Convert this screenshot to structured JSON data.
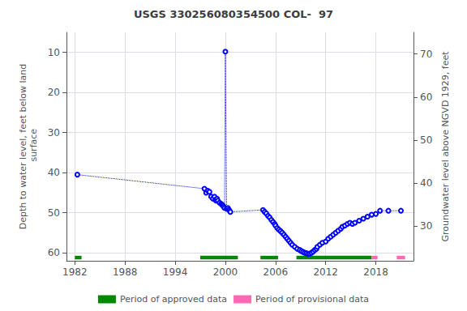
{
  "chart_data": {
    "type": "line",
    "title": "USGS 330256080354500 COL-  97",
    "ylabel": "Depth to water level, feet below land\n surface",
    "y2label": "Groundwater level above NGVD 1929, feet",
    "xlim": [
      1981.0,
      2022.5
    ],
    "xticks": [
      1982,
      1988,
      1994,
      2000,
      2006,
      2012,
      2018
    ],
    "ylim": [
      62,
      5
    ],
    "yticks": [
      10,
      20,
      30,
      40,
      50,
      60
    ],
    "y2lim": [
      22,
      75
    ],
    "y2ticks": [
      70,
      60,
      50,
      40,
      30
    ],
    "grid": true,
    "legend": "bottom",
    "color": "blue",
    "marker": "open circle",
    "line_style": "dotted",
    "x": [
      1982.3,
      1997.5,
      1997.7,
      1997.9,
      1998.1,
      1998.3,
      1998.5,
      1998.7,
      1998.8,
      1998.9,
      1999.0,
      1999.1,
      1999.3,
      1999.5,
      1999.6,
      1999.7,
      1999.8,
      1999.9,
      2000.0,
      2000.15,
      2000.3,
      2000.4,
      2000.5,
      2000.6,
      2004.5,
      2004.7,
      2004.9,
      2005.1,
      2005.3,
      2005.5,
      2005.7,
      2005.9,
      2006.0,
      2006.2,
      2006.4,
      2006.6,
      2006.8,
      2007.0,
      2007.2,
      2007.4,
      2007.6,
      2007.8,
      2008.0,
      2008.3,
      2008.6,
      2008.9,
      2009.1,
      2009.3,
      2009.5,
      2009.7,
      2009.9,
      2010.1,
      2010.3,
      2010.5,
      2010.7,
      2010.9,
      2011.0,
      2011.3,
      2011.6,
      2012.0,
      2012.3,
      2012.6,
      2012.9,
      2013.2,
      2013.5,
      2013.8,
      2014.0,
      2014.3,
      2014.6,
      2014.9,
      2015.2,
      2015.5,
      2016.0,
      2016.5,
      2017.0,
      2017.5,
      2018.0,
      2018.5,
      2019.5,
      2021.0
    ],
    "values": [
      40.5,
      44.0,
      45.0,
      44.5,
      44.8,
      46.0,
      46.5,
      46.0,
      46.8,
      47.0,
      46.5,
      47.0,
      47.5,
      47.8,
      48.0,
      48.2,
      48.5,
      48.8,
      9.8,
      49.0,
      48.8,
      49.2,
      49.5,
      49.8,
      49.3,
      49.8,
      50.2,
      50.8,
      51.2,
      51.8,
      52.3,
      52.8,
      53.2,
      53.8,
      54.2,
      54.6,
      55.0,
      55.5,
      56.0,
      56.5,
      57.0,
      57.5,
      58.0,
      58.5,
      59.0,
      59.3,
      59.6,
      59.8,
      60.0,
      60.1,
      60.3,
      60.2,
      60.0,
      59.7,
      59.3,
      59.0,
      58.5,
      58.0,
      57.5,
      57.2,
      56.5,
      56.0,
      55.5,
      55.0,
      54.5,
      54.0,
      53.5,
      53.2,
      52.8,
      52.5,
      52.8,
      52.5,
      52.0,
      51.5,
      51.0,
      50.5,
      50.3,
      49.5,
      49.5,
      49.5
    ],
    "period_y": 61.2,
    "period_height": 0.9,
    "periods": [
      {
        "name": "Period of approved data",
        "color": "#008800",
        "ranges": [
          [
            1982.0,
            1982.8
          ],
          [
            1997.0,
            2001.5
          ],
          [
            2004.2,
            2006.3
          ],
          [
            2008.5,
            2017.5
          ]
        ]
      },
      {
        "name": "Period of provisional data",
        "color": "#ff69b4",
        "ranges": [
          [
            2017.5,
            2018.2
          ],
          [
            2020.5,
            2021.5
          ]
        ]
      }
    ]
  }
}
